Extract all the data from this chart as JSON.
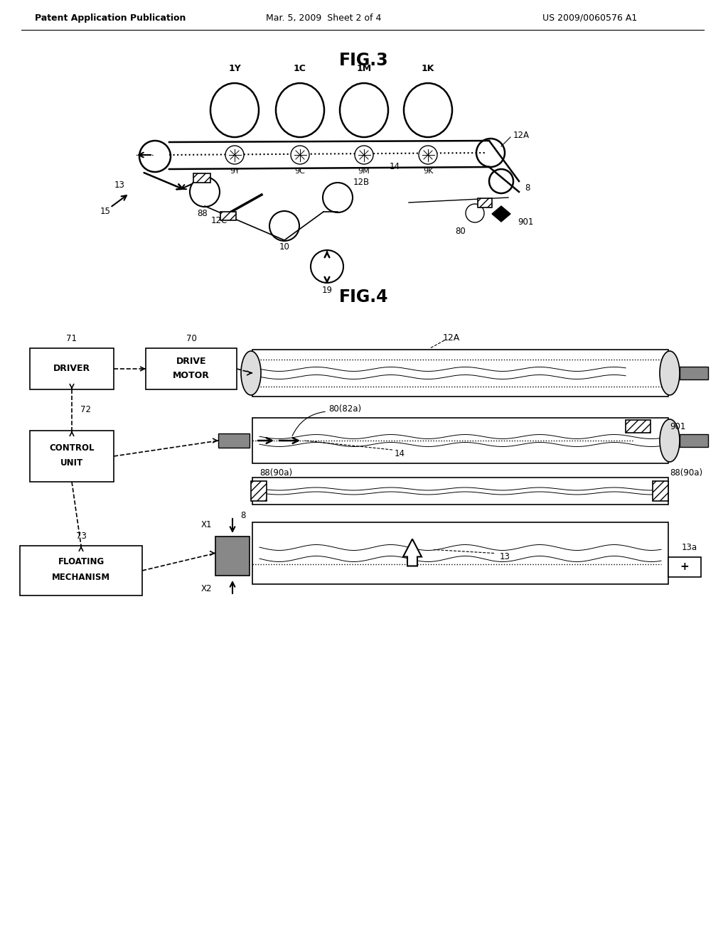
{
  "background_color": "#ffffff",
  "fig_width": 10.24,
  "fig_height": 13.2,
  "header_text1": "Patent Application Publication",
  "header_text2": "Mar. 5, 2009  Sheet 2 of 4",
  "header_text3": "US 2009/0060576 A1",
  "fig3_title": "FIG.3",
  "fig4_title": "FIG.4",
  "text_color": "#000000"
}
